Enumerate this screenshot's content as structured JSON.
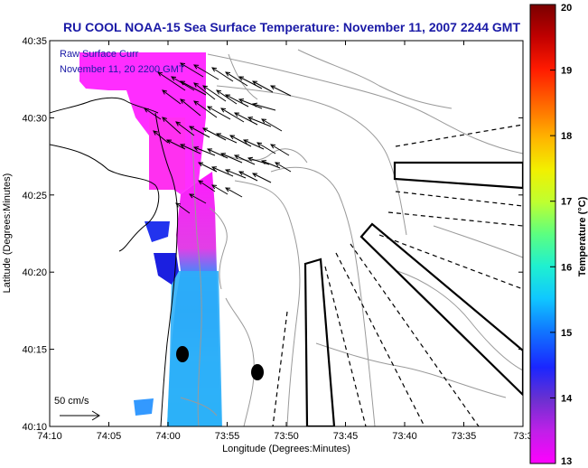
{
  "title": "RU COOL  NOAA-15  Sea Surface Temperature:  November 11, 2007 2244 GMT",
  "overlay": {
    "line1": "Raw Surface Curr",
    "line2": "November 11, 20   2200 GMT"
  },
  "xaxis": {
    "label": "Longitude (Degrees:Minutes)",
    "ticks": [
      "74:10",
      "74:05",
      "74:00",
      "73:55",
      "73:50",
      "73:45",
      "73:40",
      "73:35",
      "73:3"
    ]
  },
  "yaxis": {
    "label": "Latitude (Degrees:Minutes)",
    "ticks": [
      "40:35",
      "40:30",
      "40:25",
      "40:20",
      "40:15",
      "40:10"
    ]
  },
  "scale_arrow": {
    "label": "50 cm/s"
  },
  "colorbar": {
    "label": "Temperature (°C)",
    "ticks": [
      "20",
      "19",
      "18",
      "17",
      "16",
      "15",
      "14",
      "13"
    ],
    "colors": [
      "#7a0000",
      "#d40000",
      "#ff3300",
      "#ff8800",
      "#ffd400",
      "#e6ff20",
      "#88ff66",
      "#22ffcc",
      "#11ddff",
      "#1188ff",
      "#1133ff",
      "#6a3cc8",
      "#ff00ff"
    ]
  }
}
